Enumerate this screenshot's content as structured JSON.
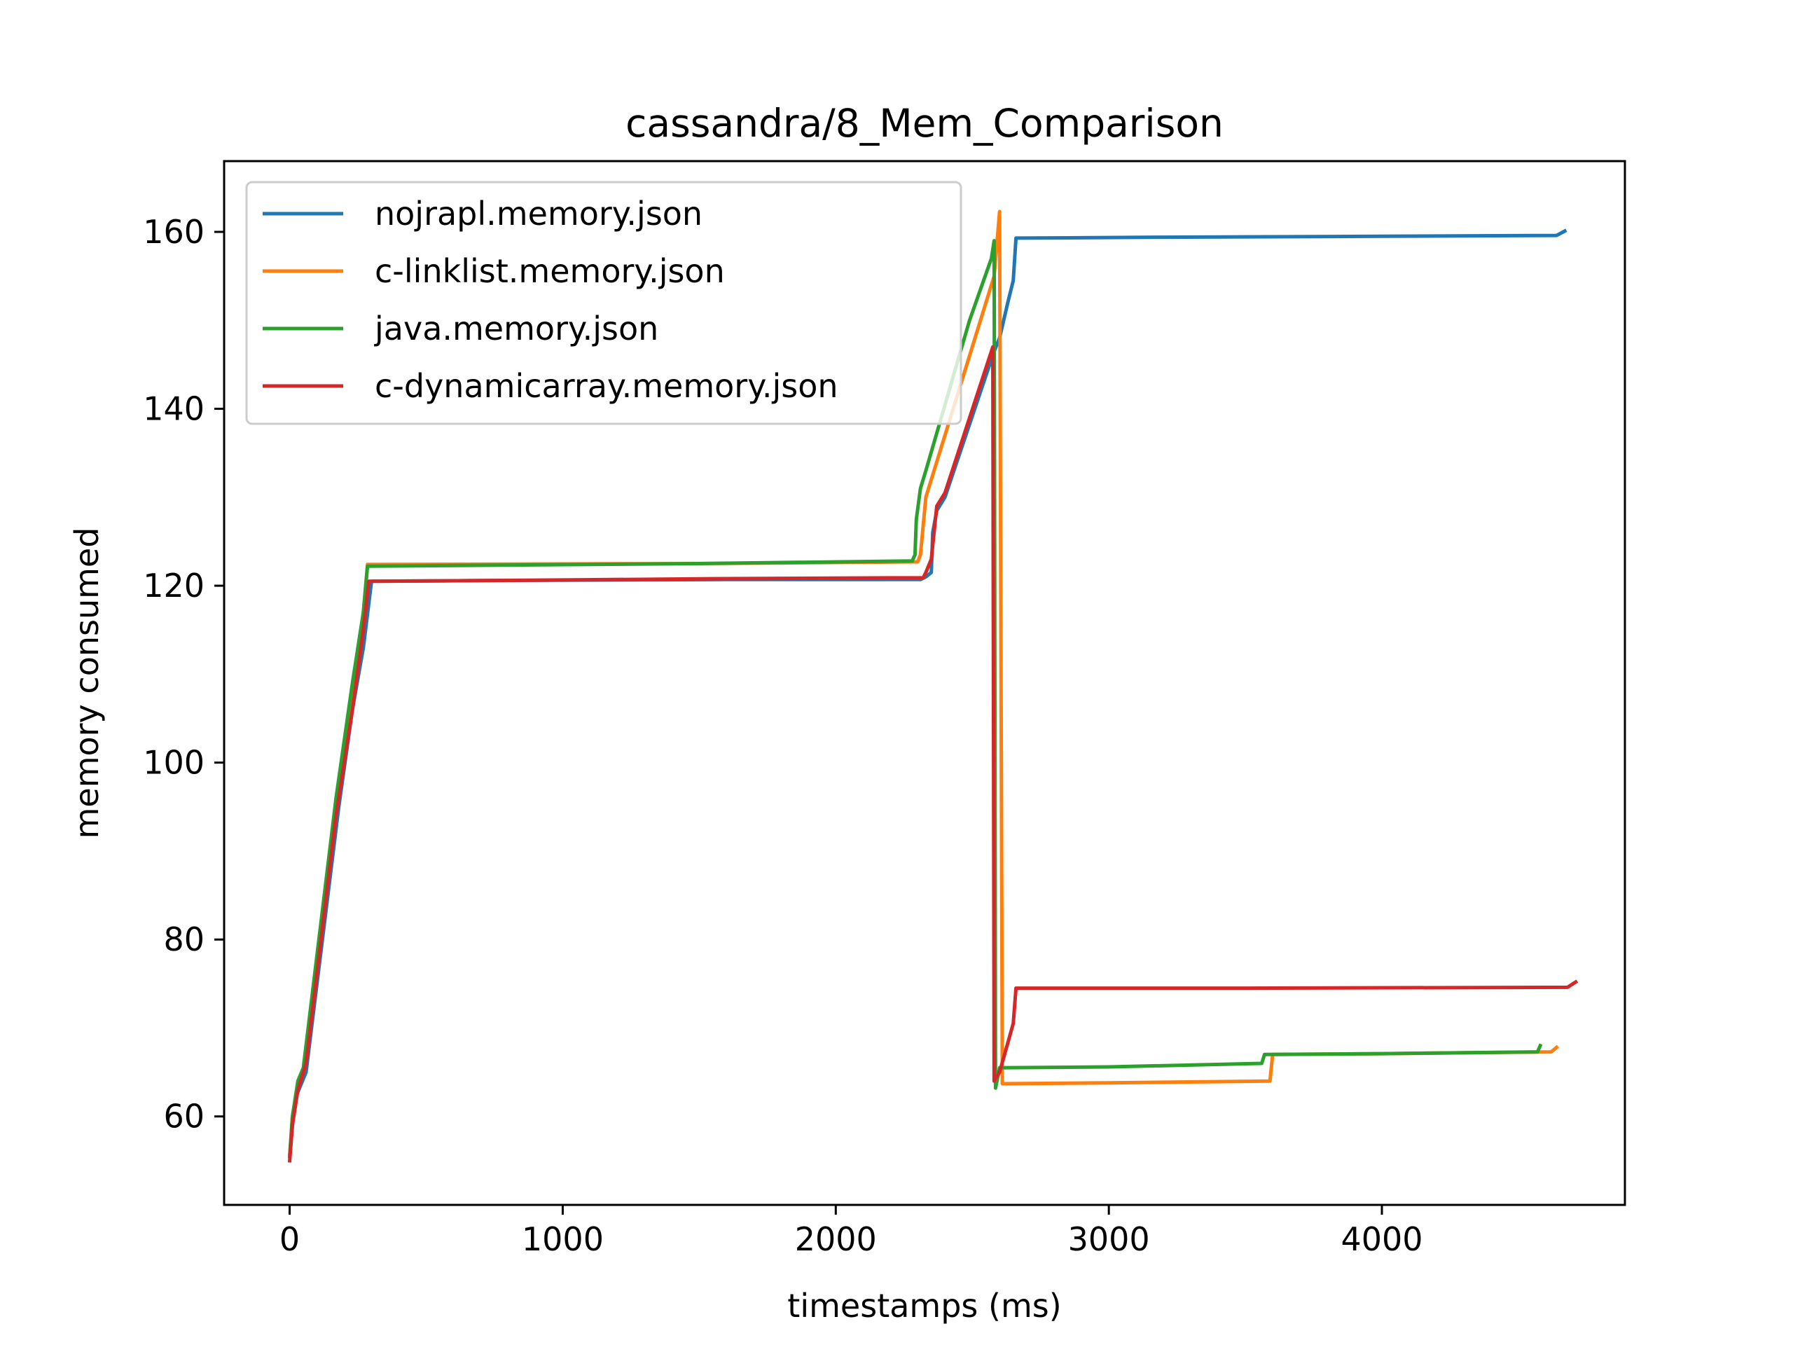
{
  "chart_data": {
    "type": "line",
    "title": "cassandra/8_Mem_Comparison",
    "xlabel": "timestamps (ms)",
    "ylabel": "memory consumed",
    "xlim": [
      -240,
      4890
    ],
    "ylim": [
      50,
      168
    ],
    "xticks": [
      0,
      1000,
      2000,
      3000,
      4000
    ],
    "yticks": [
      60,
      80,
      100,
      120,
      140,
      160
    ],
    "grid": false,
    "legend_position": "top-left",
    "series": [
      {
        "name": "nojrapl.memory.json",
        "color": "#1f77b4",
        "points": [
          [
            0,
            55.5
          ],
          [
            10,
            59
          ],
          [
            20,
            62
          ],
          [
            40,
            63.5
          ],
          [
            60,
            65
          ],
          [
            180,
            95
          ],
          [
            230,
            106
          ],
          [
            270,
            113
          ],
          [
            300,
            120.5
          ],
          [
            800,
            120.6
          ],
          [
            1600,
            120.7
          ],
          [
            2310,
            120.7
          ],
          [
            2330,
            121
          ],
          [
            2350,
            121.5
          ],
          [
            2355,
            126
          ],
          [
            2370,
            128.5
          ],
          [
            2400,
            130
          ],
          [
            2580,
            146.5
          ],
          [
            2600,
            148
          ],
          [
            2630,
            152
          ],
          [
            2650,
            154.5
          ],
          [
            2660,
            159.3
          ],
          [
            3200,
            159.4
          ],
          [
            4000,
            159.5
          ],
          [
            4640,
            159.6
          ],
          [
            4670,
            160.1
          ]
        ]
      },
      {
        "name": "c-linklist.memory.json",
        "color": "#ff7f0e",
        "points": [
          [
            0,
            55.5
          ],
          [
            10,
            60
          ],
          [
            30,
            63.5
          ],
          [
            50,
            65
          ],
          [
            170,
            95
          ],
          [
            230,
            108
          ],
          [
            270,
            117
          ],
          [
            285,
            122.4
          ],
          [
            1500,
            122.5
          ],
          [
            2300,
            122.7
          ],
          [
            2310,
            123.5
          ],
          [
            2330,
            130
          ],
          [
            2580,
            155
          ],
          [
            2600,
            162.3
          ],
          [
            2610,
            63.7
          ],
          [
            3000,
            63.8
          ],
          [
            3590,
            64
          ],
          [
            3600,
            67
          ],
          [
            4000,
            67.1
          ],
          [
            4620,
            67.3
          ],
          [
            4640,
            67.8
          ]
        ]
      },
      {
        "name": "java.memory.json",
        "color": "#2ca02c",
        "points": [
          [
            0,
            55.5
          ],
          [
            10,
            60
          ],
          [
            30,
            64
          ],
          [
            50,
            65.5
          ],
          [
            170,
            96
          ],
          [
            230,
            109
          ],
          [
            270,
            117
          ],
          [
            285,
            122.2
          ],
          [
            1500,
            122.5
          ],
          [
            2280,
            122.8
          ],
          [
            2290,
            123.5
          ],
          [
            2295,
            127.5
          ],
          [
            2310,
            131
          ],
          [
            2330,
            133
          ],
          [
            2490,
            150
          ],
          [
            2570,
            157
          ],
          [
            2580,
            159
          ],
          [
            2585,
            63.2
          ],
          [
            2600,
            65.5
          ],
          [
            3000,
            65.6
          ],
          [
            3560,
            66
          ],
          [
            3570,
            67
          ],
          [
            4000,
            67.1
          ],
          [
            4570,
            67.3
          ],
          [
            4580,
            68
          ]
        ]
      },
      {
        "name": "c-dynamicarray.memory.json",
        "color": "#d62728",
        "points": [
          [
            0,
            55
          ],
          [
            10,
            59
          ],
          [
            30,
            63
          ],
          [
            60,
            66
          ],
          [
            170,
            94
          ],
          [
            230,
            106
          ],
          [
            270,
            115
          ],
          [
            290,
            120.5
          ],
          [
            800,
            120.6
          ],
          [
            1600,
            120.8
          ],
          [
            2320,
            120.9
          ],
          [
            2330,
            121.5
          ],
          [
            2350,
            123
          ],
          [
            2370,
            129
          ],
          [
            2400,
            130.5
          ],
          [
            2570,
            146.5
          ],
          [
            2575,
            147
          ],
          [
            2580,
            64
          ],
          [
            2600,
            65
          ],
          [
            2650,
            70.5
          ],
          [
            2660,
            74.5
          ],
          [
            3500,
            74.5
          ],
          [
            4680,
            74.6
          ],
          [
            4710,
            75.2
          ]
        ]
      }
    ]
  }
}
